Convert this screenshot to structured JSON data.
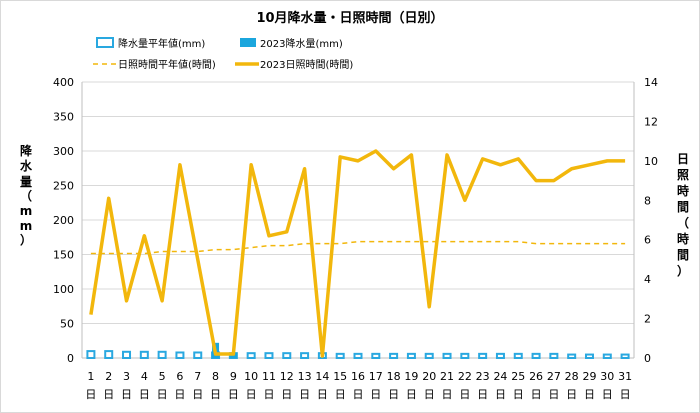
{
  "chart_data": {
    "type": "bar+line",
    "title": "10月降水量・日照時間（日別）",
    "categories": [
      "1",
      "2",
      "3",
      "4",
      "5",
      "6",
      "7",
      "8",
      "9",
      "10",
      "11",
      "12",
      "13",
      "14",
      "15",
      "16",
      "17",
      "18",
      "19",
      "20",
      "21",
      "22",
      "23",
      "24",
      "25",
      "26",
      "27",
      "28",
      "29",
      "30",
      "31"
    ],
    "category_suffix": "日",
    "left_axis": {
      "label": "降水量（mm）",
      "ylim": [
        0,
        400
      ],
      "ticks": [
        0,
        50,
        100,
        150,
        200,
        250,
        300,
        350,
        400
      ]
    },
    "right_axis": {
      "label": "日照時間（時間）",
      "ylim": [
        0,
        14
      ],
      "ticks": [
        0,
        2,
        4,
        6,
        8,
        10,
        12,
        14
      ]
    },
    "grid": "horizontal",
    "legend_position": "top",
    "series": [
      {
        "name": "降水量平年値(mm)",
        "kind": "bar",
        "style": "outline",
        "axis": "left",
        "color": "#29a8e0",
        "values": [
          10,
          10,
          9,
          9,
          9,
          8,
          8,
          8,
          7,
          7,
          7,
          7,
          7,
          7,
          6,
          6,
          6,
          6,
          6,
          6,
          6,
          6,
          6,
          6,
          6,
          6,
          6,
          5,
          5,
          5,
          5
        ]
      },
      {
        "name": "2023降水量(mm)",
        "kind": "bar",
        "style": "filled",
        "axis": "left",
        "color": "#1ba6dd",
        "values": [
          0,
          0,
          0,
          0,
          0,
          0,
          0,
          22,
          8,
          0,
          0,
          0,
          0,
          0,
          0,
          0,
          0,
          0,
          0,
          0,
          0,
          0,
          0,
          0,
          0,
          0,
          0,
          0,
          0,
          0,
          0
        ]
      },
      {
        "name": "日照時間平年値(時間)",
        "kind": "line",
        "style": "dashed",
        "axis": "right",
        "color": "#f2b70c",
        "values": [
          5.3,
          5.3,
          5.3,
          5.3,
          5.4,
          5.4,
          5.4,
          5.5,
          5.5,
          5.6,
          5.7,
          5.7,
          5.8,
          5.8,
          5.8,
          5.9,
          5.9,
          5.9,
          5.9,
          5.9,
          5.9,
          5.9,
          5.9,
          5.9,
          5.9,
          5.8,
          5.8,
          5.8,
          5.8,
          5.8,
          5.8
        ]
      },
      {
        "name": "2023日照時間(時間)",
        "kind": "line",
        "style": "solid",
        "axis": "right",
        "color": "#f2b70c",
        "values": [
          2.2,
          8.1,
          2.9,
          6.2,
          2.9,
          9.8,
          5.0,
          0.2,
          0.2,
          9.8,
          6.2,
          6.4,
          9.6,
          0.1,
          10.2,
          10.0,
          10.5,
          9.6,
          10.3,
          2.6,
          10.3,
          8.0,
          10.1,
          9.8,
          10.1,
          9.0,
          9.0,
          9.6,
          9.8,
          10.0,
          10.0
        ]
      }
    ]
  }
}
